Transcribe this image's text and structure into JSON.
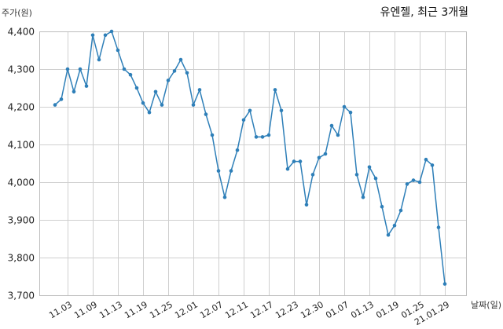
{
  "chart_data": {
    "type": "line",
    "title": "유엔젤, 최근 3개월",
    "ylabel": "주가(원)",
    "xlabel": "날짜(일)",
    "ylim": [
      3700,
      4400
    ],
    "yticks": [
      3700,
      3800,
      3900,
      4000,
      4100,
      4200,
      4300,
      4400
    ],
    "ytick_labels": [
      "3,700",
      "3,800",
      "3,900",
      "4,000",
      "4,100",
      "4,200",
      "4,300",
      "4,400"
    ],
    "x": [
      "10.30",
      "11.02",
      "11.03",
      "11.04",
      "11.05",
      "11.06",
      "11.09",
      "11.10",
      "11.11",
      "11.12",
      "11.13",
      "11.16",
      "11.17",
      "11.18",
      "11.19",
      "11.20",
      "11.23",
      "11.24",
      "11.25",
      "11.26",
      "11.27",
      "11.30",
      "12.01",
      "12.02",
      "12.03",
      "12.04",
      "12.07",
      "12.08",
      "12.09",
      "12.10",
      "12.11",
      "12.14",
      "12.15",
      "12.16",
      "12.17",
      "12.18",
      "12.21",
      "12.22",
      "12.23",
      "12.24",
      "12.28",
      "12.29",
      "12.30",
      "01.04",
      "01.05",
      "01.06",
      "01.07",
      "01.08",
      "01.11",
      "01.12",
      "01.13",
      "01.14",
      "01.15",
      "01.18",
      "01.19",
      "01.20",
      "01.21",
      "01.22",
      "01.25",
      "01.26",
      "01.27",
      "01.28",
      "21.01.29"
    ],
    "xtick_labels": [
      "11.03",
      "11.09",
      "11.13",
      "11.19",
      "11.25",
      "12.01",
      "12.07",
      "12.11",
      "12.17",
      "12.23",
      "12.30",
      "01.07",
      "01.13",
      "01.19",
      "01.25",
      "21.01.29"
    ],
    "grid": true,
    "series": [
      {
        "color": "#2e7fb8",
        "values": [
          4205,
          4220,
          4300,
          4240,
          4300,
          4255,
          4390,
          4325,
          4390,
          4400,
          4350,
          4300,
          4285,
          4250,
          4210,
          4185,
          4240,
          4205,
          4270,
          4295,
          4325,
          4290,
          4205,
          4245,
          4180,
          4125,
          4030,
          3960,
          4030,
          4085,
          4165,
          4190,
          4120,
          4120,
          4125,
          4245,
          4190,
          4035,
          4055,
          4055,
          3940,
          4020,
          4065,
          4075,
          4150,
          4125,
          4200,
          4185,
          4020,
          3960,
          4040,
          4010,
          3935,
          3860,
          3885,
          3925,
          3995,
          4005,
          4000,
          4060,
          4045,
          3880,
          3730
        ]
      }
    ]
  }
}
